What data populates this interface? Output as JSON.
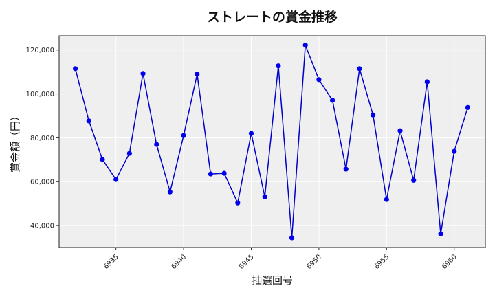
{
  "chart_data": {
    "type": "line",
    "title": "ストレートの賞金推移",
    "xlabel": "抽選回号",
    "ylabel": "賞金額（円）",
    "x": [
      6932,
      6933,
      6934,
      6935,
      6936,
      6937,
      6938,
      6939,
      6940,
      6941,
      6942,
      6943,
      6944,
      6945,
      6946,
      6947,
      6948,
      6949,
      6950,
      6951,
      6952,
      6953,
      6954,
      6955,
      6956,
      6957,
      6958,
      6959,
      6960,
      6961
    ],
    "series": [
      {
        "name": "ストレート",
        "color": "#0000cc",
        "marker": "circle",
        "values": [
          111500,
          87700,
          70100,
          61000,
          72900,
          109300,
          77000,
          55300,
          81000,
          109000,
          63500,
          63800,
          50300,
          82000,
          53100,
          112800,
          34400,
          122200,
          106500,
          97100,
          65700,
          111500,
          90400,
          51900,
          83200,
          60600,
          105500,
          36200,
          73800,
          93800
        ]
      }
    ],
    "xticks": [
      6935,
      6940,
      6945,
      6950,
      6955,
      6960
    ],
    "xtick_labels": [
      "6935",
      "6940",
      "6945",
      "6950",
      "6955",
      "6960"
    ],
    "yticks": [
      40000,
      60000,
      80000,
      100000,
      120000
    ],
    "ytick_labels": [
      "40,000",
      "60,000",
      "80,000",
      "100,000",
      "120,000"
    ],
    "xlim": [
      6930.8,
      6962.3
    ],
    "ylim": [
      30000,
      126500
    ],
    "grid": true,
    "legend": null,
    "background": "#efefef"
  }
}
